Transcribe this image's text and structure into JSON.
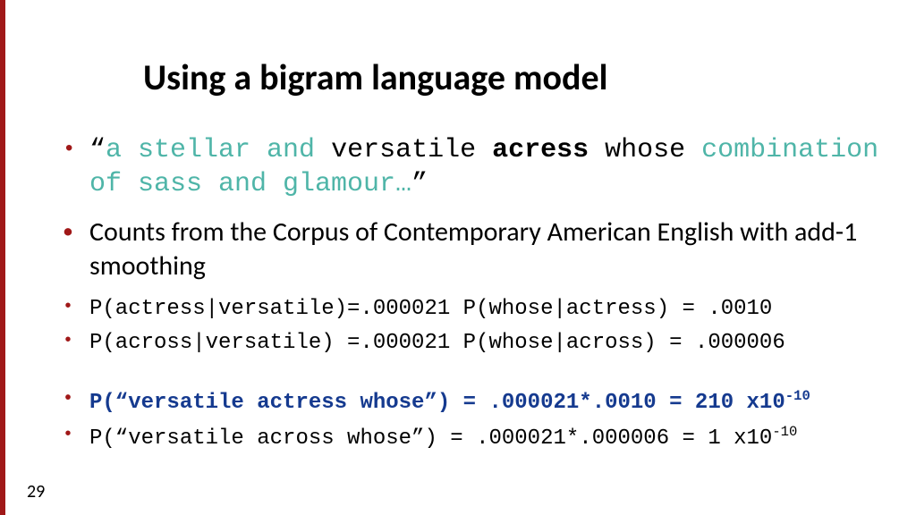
{
  "title": "Using a bigram language model",
  "quote": {
    "open": "“",
    "teal1": "a stellar and ",
    "plain1": "versatile ",
    "bold": "acress",
    "plain2": " whose ",
    "teal2": "combination of sass and glamour…",
    "close": "”"
  },
  "corpus_line": "Counts from the Corpus of Contemporary American English with add-1 smoothing",
  "p1": "P(actress|versatile)=.000021 P(whose|actress) = .0010",
  "p2": "P(across|versatile) =.000021 P(whose|across) = .000006",
  "r1": {
    "text": "P(“versatile actress whose”) = .000021*.0010 = 210 x10",
    "sup": "-10"
  },
  "r2": {
    "text": "P(“versatile across whose”)  = .000021*.000006 = 1 x10",
    "sup": "-10"
  },
  "page_number": "29",
  "colors": {
    "accent": "#a01818",
    "teal": "#4fb5a8",
    "blue": "#153a8f",
    "bg": "#ffffff"
  }
}
